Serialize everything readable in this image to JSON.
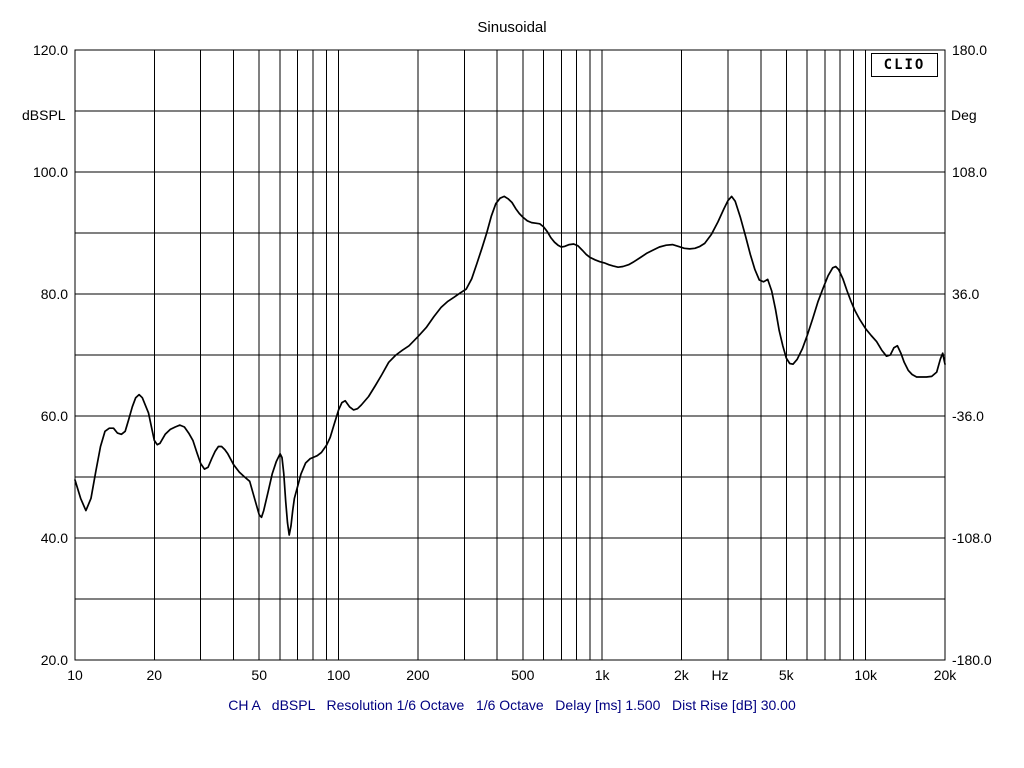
{
  "chart_data": {
    "type": "line",
    "title": "Sinusoidal",
    "badge": "CLIO",
    "caption": "CH A   dBSPL   Resolution 1/6 Octave   1/6 Octave   Delay [ms] 1.500   Dist Rise [dB] 30.00",
    "settings": {
      "channel": "CH A",
      "unit": "dBSPL",
      "resolution": "1/6 Octave",
      "smoothing": "1/6 Octave",
      "delay_ms": "1.500",
      "dist_rise_db": "30.00"
    },
    "x_scale": "log",
    "x_range": [
      10,
      20000
    ],
    "x_gridlines": [
      10,
      20,
      30,
      40,
      50,
      60,
      70,
      80,
      90,
      100,
      200,
      300,
      400,
      500,
      600,
      700,
      800,
      900,
      1000,
      2000,
      3000,
      4000,
      5000,
      6000,
      7000,
      8000,
      9000,
      10000,
      20000
    ],
    "x_ticks": [
      {
        "f": 10,
        "label": "10"
      },
      {
        "f": 20,
        "label": "20"
      },
      {
        "f": 50,
        "label": "50"
      },
      {
        "f": 100,
        "label": "100"
      },
      {
        "f": 200,
        "label": "200"
      },
      {
        "f": 500,
        "label": "500"
      },
      {
        "f": 1000,
        "label": "1k"
      },
      {
        "f": 2000,
        "label": "2k"
      },
      {
        "f": 5000,
        "label": "5k"
      },
      {
        "f": 10000,
        "label": "10k"
      },
      {
        "f": 20000,
        "label": "20k"
      }
    ],
    "x_unit": {
      "f": 2800,
      "label": "Hz"
    },
    "y_left": {
      "unit": "dBSPL",
      "range": [
        20,
        120
      ],
      "grid_step": 10,
      "ticks": [
        {
          "v": 120,
          "label": "120.0"
        },
        {
          "v": 100,
          "label": "100.0"
        },
        {
          "v": 80,
          "label": "80.0"
        },
        {
          "v": 60,
          "label": "60.0"
        },
        {
          "v": 40,
          "label": "40.0"
        },
        {
          "v": 20,
          "label": "20.0"
        }
      ]
    },
    "y_right": {
      "unit": "Deg",
      "range": [
        -180,
        180
      ],
      "ticks": [
        {
          "v": 180,
          "label": "180.0"
        },
        {
          "v": 108,
          "label": "108.0"
        },
        {
          "v": 36,
          "label": "36.0"
        },
        {
          "v": -36,
          "label": "-36.0"
        },
        {
          "v": -108,
          "label": "-108.0"
        },
        {
          "v": -180,
          "label": "-180.0"
        }
      ]
    },
    "series": [
      {
        "name": "CH A dBSPL",
        "color": "#000000",
        "points": [
          [
            10,
            49.5
          ],
          [
            10.5,
            46.5
          ],
          [
            11,
            44.5
          ],
          [
            11.5,
            46.5
          ],
          [
            12,
            51
          ],
          [
            12.5,
            55
          ],
          [
            13,
            57.5
          ],
          [
            13.5,
            58
          ],
          [
            14,
            58
          ],
          [
            14.5,
            57.2
          ],
          [
            15,
            57
          ],
          [
            15.5,
            57.5
          ],
          [
            16,
            59.5
          ],
          [
            16.5,
            61.5
          ],
          [
            17,
            63
          ],
          [
            17.5,
            63.5
          ],
          [
            18,
            63
          ],
          [
            19,
            60.5
          ],
          [
            20,
            56
          ],
          [
            20.5,
            55.3
          ],
          [
            21,
            55.5
          ],
          [
            22,
            57
          ],
          [
            23,
            57.8
          ],
          [
            24,
            58.2
          ],
          [
            25,
            58.5
          ],
          [
            26,
            58.2
          ],
          [
            27,
            57.2
          ],
          [
            28,
            56
          ],
          [
            29,
            54
          ],
          [
            30,
            52.2
          ],
          [
            31,
            51.3
          ],
          [
            32,
            51.6
          ],
          [
            33,
            53
          ],
          [
            34,
            54.2
          ],
          [
            35,
            55
          ],
          [
            36,
            55
          ],
          [
            37,
            54.5
          ],
          [
            38,
            53.8
          ],
          [
            40,
            52
          ],
          [
            42,
            50.8
          ],
          [
            44,
            50
          ],
          [
            46,
            49.3
          ],
          [
            48,
            46.5
          ],
          [
            50,
            43.8
          ],
          [
            51,
            43.4
          ],
          [
            52,
            44.5
          ],
          [
            54,
            47.5
          ],
          [
            56,
            50.5
          ],
          [
            58,
            52.5
          ],
          [
            60,
            53.8
          ],
          [
            61,
            53.2
          ],
          [
            62,
            50.5
          ],
          [
            63,
            46
          ],
          [
            64,
            42.5
          ],
          [
            65,
            40.5
          ],
          [
            66,
            42
          ],
          [
            67,
            44.5
          ],
          [
            68,
            46.5
          ],
          [
            70,
            48.5
          ],
          [
            72,
            50.5
          ],
          [
            75,
            52.3
          ],
          [
            78,
            53
          ],
          [
            80,
            53.2
          ],
          [
            83,
            53.5
          ],
          [
            86,
            54
          ],
          [
            90,
            55.2
          ],
          [
            93,
            56.5
          ],
          [
            96,
            58.5
          ],
          [
            100,
            61
          ],
          [
            103,
            62.2
          ],
          [
            106,
            62.5
          ],
          [
            110,
            61.5
          ],
          [
            114,
            61
          ],
          [
            118,
            61.2
          ],
          [
            122,
            61.8
          ],
          [
            130,
            63.2
          ],
          [
            138,
            65
          ],
          [
            146,
            66.8
          ],
          [
            155,
            68.8
          ],
          [
            165,
            70
          ],
          [
            175,
            70.8
          ],
          [
            185,
            71.5
          ],
          [
            200,
            73
          ],
          [
            215,
            74.5
          ],
          [
            230,
            76.3
          ],
          [
            245,
            77.8
          ],
          [
            260,
            78.8
          ],
          [
            275,
            79.5
          ],
          [
            290,
            80.2
          ],
          [
            305,
            80.8
          ],
          [
            320,
            82.5
          ],
          [
            335,
            85
          ],
          [
            350,
            87.5
          ],
          [
            365,
            90
          ],
          [
            380,
            92.8
          ],
          [
            395,
            94.8
          ],
          [
            410,
            95.7
          ],
          [
            425,
            96
          ],
          [
            440,
            95.6
          ],
          [
            455,
            95
          ],
          [
            470,
            94
          ],
          [
            485,
            93.2
          ],
          [
            500,
            92.6
          ],
          [
            520,
            92
          ],
          [
            540,
            91.7
          ],
          [
            560,
            91.6
          ],
          [
            580,
            91.5
          ],
          [
            600,
            91
          ],
          [
            620,
            90.2
          ],
          [
            640,
            89.2
          ],
          [
            660,
            88.5
          ],
          [
            680,
            88
          ],
          [
            700,
            87.7
          ],
          [
            720,
            87.8
          ],
          [
            750,
            88.1
          ],
          [
            780,
            88.2
          ],
          [
            810,
            87.9
          ],
          [
            840,
            87.2
          ],
          [
            870,
            86.5
          ],
          [
            900,
            86
          ],
          [
            940,
            85.6
          ],
          [
            980,
            85.3
          ],
          [
            1020,
            85.1
          ],
          [
            1060,
            84.8
          ],
          [
            1100,
            84.6
          ],
          [
            1150,
            84.4
          ],
          [
            1200,
            84.5
          ],
          [
            1260,
            84.8
          ],
          [
            1320,
            85.3
          ],
          [
            1400,
            86
          ],
          [
            1480,
            86.7
          ],
          [
            1560,
            87.2
          ],
          [
            1650,
            87.7
          ],
          [
            1750,
            88
          ],
          [
            1850,
            88.1
          ],
          [
            1950,
            87.8
          ],
          [
            2050,
            87.5
          ],
          [
            2150,
            87.4
          ],
          [
            2250,
            87.5
          ],
          [
            2350,
            87.8
          ],
          [
            2450,
            88.3
          ],
          [
            2600,
            89.8
          ],
          [
            2750,
            91.8
          ],
          [
            2900,
            94
          ],
          [
            3000,
            95.3
          ],
          [
            3100,
            96
          ],
          [
            3200,
            95.2
          ],
          [
            3350,
            92.5
          ],
          [
            3500,
            89.5
          ],
          [
            3650,
            86.5
          ],
          [
            3800,
            84
          ],
          [
            3950,
            82.3
          ],
          [
            4100,
            82
          ],
          [
            4250,
            82.4
          ],
          [
            4400,
            80.5
          ],
          [
            4550,
            77.5
          ],
          [
            4700,
            74
          ],
          [
            4850,
            71.5
          ],
          [
            5000,
            69.5
          ],
          [
            5150,
            68.6
          ],
          [
            5300,
            68.5
          ],
          [
            5500,
            69.3
          ],
          [
            5750,
            71
          ],
          [
            6000,
            73.2
          ],
          [
            6300,
            76
          ],
          [
            6600,
            78.8
          ],
          [
            6900,
            81
          ],
          [
            7200,
            83
          ],
          [
            7500,
            84.3
          ],
          [
            7700,
            84.5
          ],
          [
            7900,
            84
          ],
          [
            8200,
            82.5
          ],
          [
            8500,
            80.5
          ],
          [
            8800,
            78.8
          ],
          [
            9100,
            77.3
          ],
          [
            9500,
            75.8
          ],
          [
            10000,
            74.3
          ],
          [
            10500,
            73.2
          ],
          [
            11000,
            72.2
          ],
          [
            11500,
            70.8
          ],
          [
            12000,
            69.8
          ],
          [
            12400,
            70
          ],
          [
            12800,
            71.2
          ],
          [
            13200,
            71.5
          ],
          [
            13600,
            70.3
          ],
          [
            14000,
            68.8
          ],
          [
            14500,
            67.5
          ],
          [
            15000,
            66.8
          ],
          [
            15600,
            66.4
          ],
          [
            16200,
            66.4
          ],
          [
            17000,
            66.4
          ],
          [
            17800,
            66.5
          ],
          [
            18600,
            67.2
          ],
          [
            19200,
            69.3
          ],
          [
            19600,
            70.3
          ],
          [
            20000,
            68.5
          ]
        ]
      }
    ],
    "layout": {
      "plot_left": 75,
      "plot_right": 945,
      "plot_top": 50,
      "plot_bottom": 660,
      "grid": "on",
      "background": "#ffffff",
      "line_color": "#000000",
      "caption_color": "#000080"
    }
  }
}
